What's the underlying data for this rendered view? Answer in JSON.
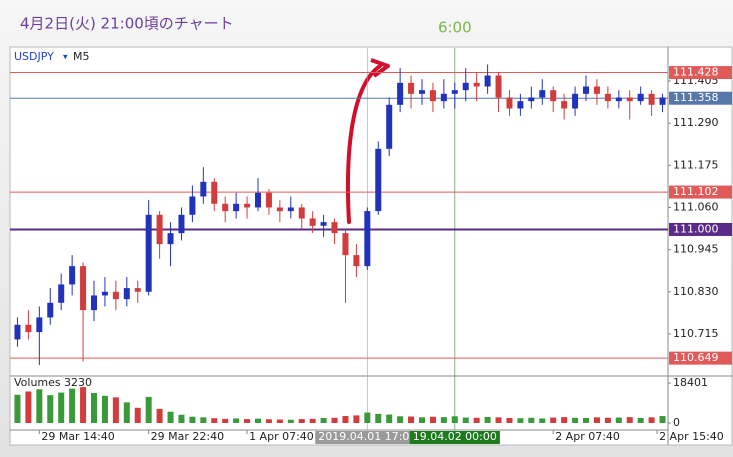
{
  "chart_data": {
    "type": "candlestick",
    "title": "4月2日(火) 21:00頃のチャート",
    "symbol": "USDJPY",
    "timeframe": "M5",
    "up_color": "#2233bb",
    "down_color": "#d23c3c",
    "open": [
      110.7,
      110.74,
      110.72,
      110.76,
      110.8,
      110.85,
      110.9,
      110.78,
      110.82,
      110.83,
      110.81,
      110.84,
      110.83,
      111.04,
      110.96,
      110.99,
      111.04,
      111.09,
      111.13,
      111.07,
      111.05,
      111.07,
      111.06,
      111.1,
      111.06,
      111.05,
      111.06,
      111.03,
      111.01,
      111.02,
      110.99,
      110.93,
      110.9,
      111.05,
      111.22,
      111.34,
      111.4,
      111.37,
      111.38,
      111.35,
      111.37,
      111.38,
      111.4,
      111.39,
      111.42,
      111.36,
      111.33,
      111.35,
      111.36,
      111.38,
      111.35,
      111.33,
      111.37,
      111.39,
      111.37,
      111.35,
      111.36,
      111.35,
      111.37,
      111.34
    ],
    "high": [
      110.76,
      110.78,
      110.79,
      110.84,
      110.88,
      110.93,
      110.91,
      110.86,
      110.87,
      110.86,
      110.87,
      110.86,
      111.08,
      111.05,
      111.02,
      111.06,
      111.12,
      111.17,
      111.14,
      111.09,
      111.1,
      111.09,
      111.14,
      111.11,
      111.08,
      111.09,
      111.07,
      111.05,
      111.04,
      111.03,
      111.0,
      110.96,
      111.06,
      111.24,
      111.36,
      111.44,
      111.42,
      111.41,
      111.4,
      111.41,
      111.4,
      111.44,
      111.43,
      111.45,
      111.43,
      111.38,
      111.37,
      111.39,
      111.41,
      111.39,
      111.37,
      111.39,
      111.42,
      111.41,
      111.39,
      111.38,
      111.38,
      111.39,
      111.38,
      111.37
    ],
    "low": [
      110.68,
      110.7,
      110.63,
      110.74,
      110.78,
      110.82,
      110.64,
      110.75,
      110.79,
      110.78,
      110.79,
      110.8,
      110.82,
      110.92,
      110.9,
      110.97,
      111.02,
      111.07,
      111.05,
      111.02,
      111.03,
      111.03,
      111.05,
      111.04,
      111.02,
      111.03,
      111.0,
      110.99,
      110.98,
      110.96,
      110.8,
      110.87,
      110.89,
      111.04,
      111.2,
      111.32,
      111.33,
      111.34,
      111.32,
      111.33,
      111.33,
      111.35,
      111.35,
      111.37,
      111.32,
      111.31,
      111.31,
      111.33,
      111.34,
      111.32,
      111.3,
      111.31,
      111.35,
      111.34,
      111.33,
      111.33,
      111.3,
      111.34,
      111.31,
      111.32
    ],
    "close": [
      110.74,
      110.72,
      110.76,
      110.8,
      110.85,
      110.9,
      110.78,
      110.82,
      110.83,
      110.81,
      110.84,
      110.83,
      111.04,
      110.96,
      110.99,
      111.04,
      111.09,
      111.13,
      111.07,
      111.05,
      111.07,
      111.06,
      111.1,
      111.06,
      111.05,
      111.06,
      111.03,
      111.01,
      111.02,
      110.99,
      110.93,
      110.9,
      111.05,
      111.22,
      111.34,
      111.4,
      111.37,
      111.38,
      111.35,
      111.37,
      111.38,
      111.4,
      111.39,
      111.42,
      111.36,
      111.33,
      111.35,
      111.36,
      111.38,
      111.35,
      111.33,
      111.37,
      111.39,
      111.37,
      111.35,
      111.36,
      111.35,
      111.37,
      111.34,
      111.36
    ],
    "xlim": [
      -0.5,
      59.5
    ],
    "ylim": [
      110.603,
      111.495
    ],
    "yticks": [
      {
        "value": 110.715,
        "label": "110.715"
      },
      {
        "value": 110.83,
        "label": "110.830"
      },
      110.945,
      {
        "value": 111.06,
        "label": "111.060"
      },
      111.175,
      {
        "value": 111.29,
        "label": "111.290"
      },
      111.405
    ],
    "xticks": [
      {
        "value": 2,
        "label": "29 Mar 14:40"
      },
      {
        "value": 12,
        "label": "29 Mar 22:40"
      },
      {
        "value": 21,
        "label": "1 Apr 07:40"
      },
      {
        "value": 49,
        "label": "2 Apr 07:40"
      },
      {
        "value": 58.5,
        "label": "2 Apr 15:40"
      }
    ],
    "levels": [
      {
        "value": 111.428,
        "color": "#e05a5a"
      },
      {
        "value": 111.358,
        "color": "#5577aa"
      },
      {
        "value": 111.102,
        "color": "#e05a5a"
      },
      {
        "value": 111,
        "label": "111.000",
        "color": "#5a2a8a"
      },
      {
        "value": 110.649,
        "color": "#e05a5a"
      }
    ],
    "markers": [
      {
        "x": 32,
        "label": "2019.04.01 17:00",
        "color": "#9a9a9a"
      },
      {
        "x": 40,
        "label": "19.04.02 00:00",
        "color": "#1d7a1d",
        "note": "6:00"
      }
    ],
    "volume": {
      "title": "Volumes",
      "ylim": [
        -3220,
        20700
      ],
      "yticks": [
        0,
        18401
      ],
      "values": [
        13000,
        14500,
        15500,
        12800,
        14000,
        15800,
        16500,
        13800,
        12500,
        11800,
        9500,
        7000,
        12000,
        6500,
        5200,
        3800,
        2900,
        2600,
        2200,
        1900,
        2100,
        1800,
        2000,
        1700,
        1600,
        1500,
        1800,
        1900,
        2300,
        2400,
        3200,
        3500,
        4800,
        4200,
        3900,
        3100,
        3000,
        2600,
        2900,
        2700,
        3100,
        2500,
        2400,
        2800,
        2600,
        2300,
        2200,
        2400,
        2100,
        2500,
        2700,
        2400,
        2300,
        2600,
        2400,
        2500,
        2700,
        2300,
        2600,
        3230
      ]
    }
  }
}
